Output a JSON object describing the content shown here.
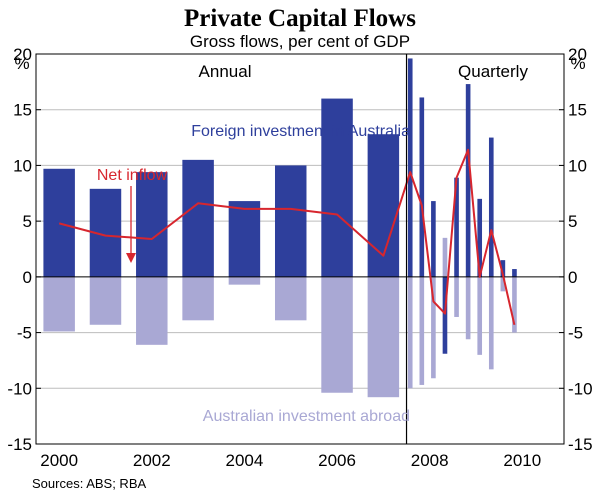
{
  "chart_data": {
    "type": "bar+line",
    "title": "Private Capital Flows",
    "subtitle": "Gross flows, per cent of GDP",
    "unit_left": "%",
    "unit_right": "%",
    "ylim": [
      -15,
      20
    ],
    "yticks": [
      -15,
      -10,
      -5,
      0,
      5,
      10,
      15,
      20
    ],
    "panels": {
      "annual": "Annual",
      "quarterly": "Quarterly"
    },
    "xlim": [
      1999.5,
      2010.9
    ],
    "period_divider_x": 2007.5,
    "xticks": [
      {
        "label": "2000",
        "x": 2000
      },
      {
        "label": "2002",
        "x": 2002
      },
      {
        "label": "2004",
        "x": 2004
      },
      {
        "label": "2006",
        "x": 2006
      },
      {
        "label": "2008",
        "x": 2008
      },
      {
        "label": "2010",
        "x": 2010
      }
    ],
    "annual_bar_width": 0.68,
    "quarterly_bar_width": 0.1,
    "series": [
      {
        "name": "Foreign investment in Australia",
        "kind": "bar",
        "color": "#2e3f9c",
        "annual": {
          "x": [
            2000,
            2001,
            2002,
            2003,
            2004,
            2005,
            2006,
            2007
          ],
          "values": [
            9.7,
            7.9,
            9.4,
            10.5,
            6.8,
            10.0,
            16.0,
            12.8
          ]
        },
        "quarterly": {
          "x": [
            2007.58,
            2007.83,
            2008.08,
            2008.33,
            2008.58,
            2008.83,
            2009.08,
            2009.33,
            2009.58,
            2009.83,
            2010.08
          ],
          "values": [
            19.6,
            16.1,
            6.8,
            -6.9,
            8.9,
            17.3,
            7.0,
            12.5,
            1.5,
            0.7,
            null
          ]
        }
      },
      {
        "name": "Australian investment abroad",
        "kind": "bar",
        "color": "#a9a8d4",
        "annual": {
          "x": [
            2000,
            2001,
            2002,
            2003,
            2004,
            2005,
            2006,
            2007
          ],
          "values": [
            -4.9,
            -4.3,
            -6.1,
            -3.9,
            -0.7,
            -3.9,
            -10.4,
            -10.8
          ]
        },
        "quarterly": {
          "x": [
            2007.58,
            2007.83,
            2008.08,
            2008.33,
            2008.58,
            2008.83,
            2009.08,
            2009.33,
            2009.58,
            2009.83,
            2010.08
          ],
          "values": [
            -10.0,
            -9.7,
            -9.1,
            3.5,
            -3.6,
            -5.6,
            -7.0,
            -8.3,
            -1.3,
            -5.0,
            null
          ]
        }
      },
      {
        "name": "Net inflow",
        "kind": "line",
        "color": "#d7262e",
        "x": [
          2000,
          2001,
          2002,
          2003,
          2004,
          2005,
          2006,
          2007,
          2007.58,
          2007.83,
          2008.08,
          2008.33,
          2008.58,
          2008.83,
          2009.08,
          2009.33,
          2009.58,
          2009.83
        ],
        "values": [
          4.8,
          3.7,
          3.4,
          6.6,
          6.1,
          6.1,
          5.6,
          1.9,
          9.4,
          6.4,
          -2.2,
          -3.3,
          8.9,
          11.4,
          0.0,
          4.2,
          0.2,
          -4.3
        ]
      }
    ],
    "annotations": {
      "foreign_label": "Foreign investment in Australia",
      "abroad_label": "Australian investment abroad",
      "net_label": "Net inflow"
    },
    "source": "Sources: ABS; RBA"
  }
}
